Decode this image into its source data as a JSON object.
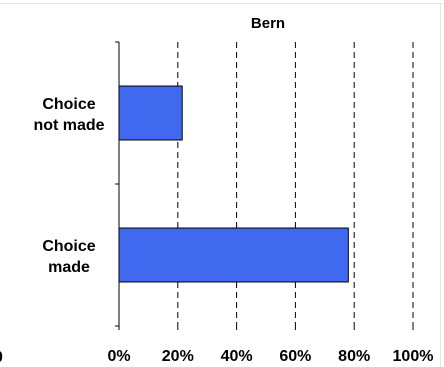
{
  "chart_data": {
    "type": "bar",
    "orientation": "horizontal",
    "title": "Bern",
    "categories": [
      [
        "Choice",
        "not made"
      ],
      [
        "Choice",
        "made"
      ]
    ],
    "values": [
      21.5,
      78
    ],
    "xlim": [
      0,
      100
    ],
    "xticks": [
      "0%",
      "20%",
      "40%",
      "60%",
      "80%",
      "100%"
    ],
    "grid": "vertical-dashed",
    "bar_color": "#4169F0",
    "edge_color": "#000000"
  }
}
